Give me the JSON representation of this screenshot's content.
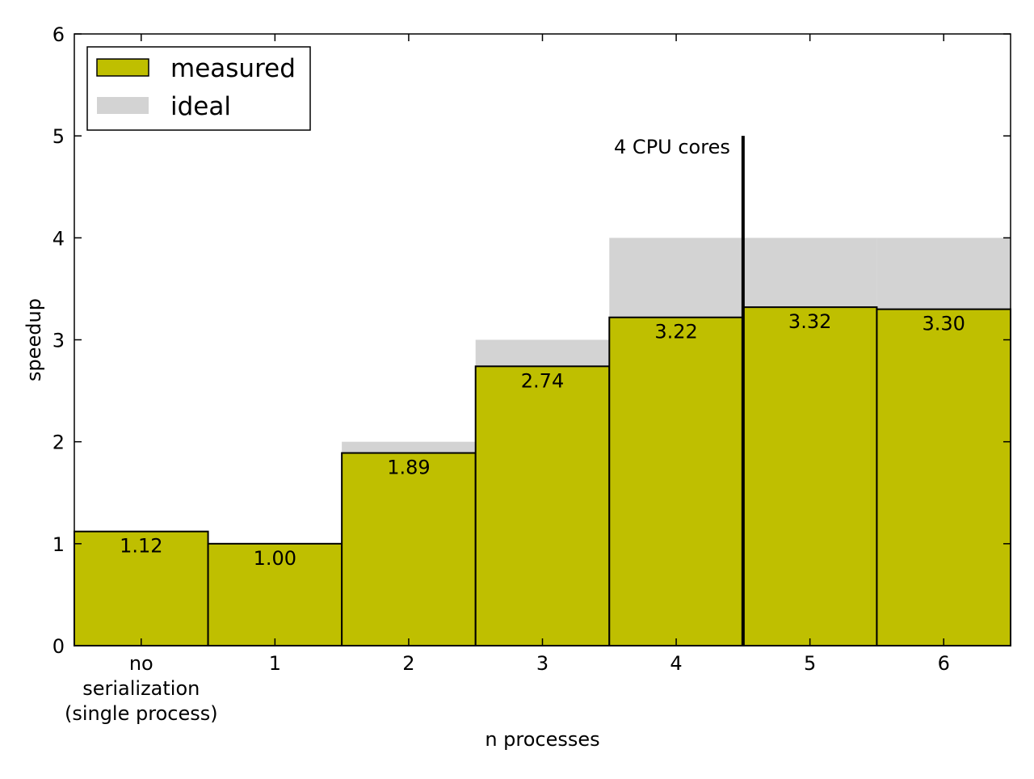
{
  "chart_data": {
    "type": "bar",
    "title": "",
    "xlabel": "n processes",
    "ylabel": "speedup",
    "ylim": [
      0,
      6
    ],
    "yticks": [
      0,
      1,
      2,
      3,
      4,
      5,
      6
    ],
    "categories": [
      "no\nserialization\n(single process)",
      "1",
      "2",
      "3",
      "4",
      "5",
      "6"
    ],
    "series": [
      {
        "name": "measured",
        "values": [
          1.12,
          1.0,
          1.89,
          2.74,
          3.22,
          3.32,
          3.3
        ],
        "labels": [
          "1.12",
          "1.00",
          "1.89",
          "2.74",
          "3.22",
          "3.32",
          "3.30"
        ],
        "color": "#bfbf00"
      },
      {
        "name": "ideal",
        "values": [
          1,
          1,
          2,
          3,
          4,
          4,
          4
        ],
        "color": "#d3d3d3"
      }
    ],
    "annotation": {
      "text": "4 CPU cores",
      "x_between": [
        "4",
        "5"
      ],
      "y_top": 5.0
    },
    "legend": {
      "position": "top-left",
      "entries": [
        "measured",
        "ideal"
      ]
    },
    "grid": false
  }
}
